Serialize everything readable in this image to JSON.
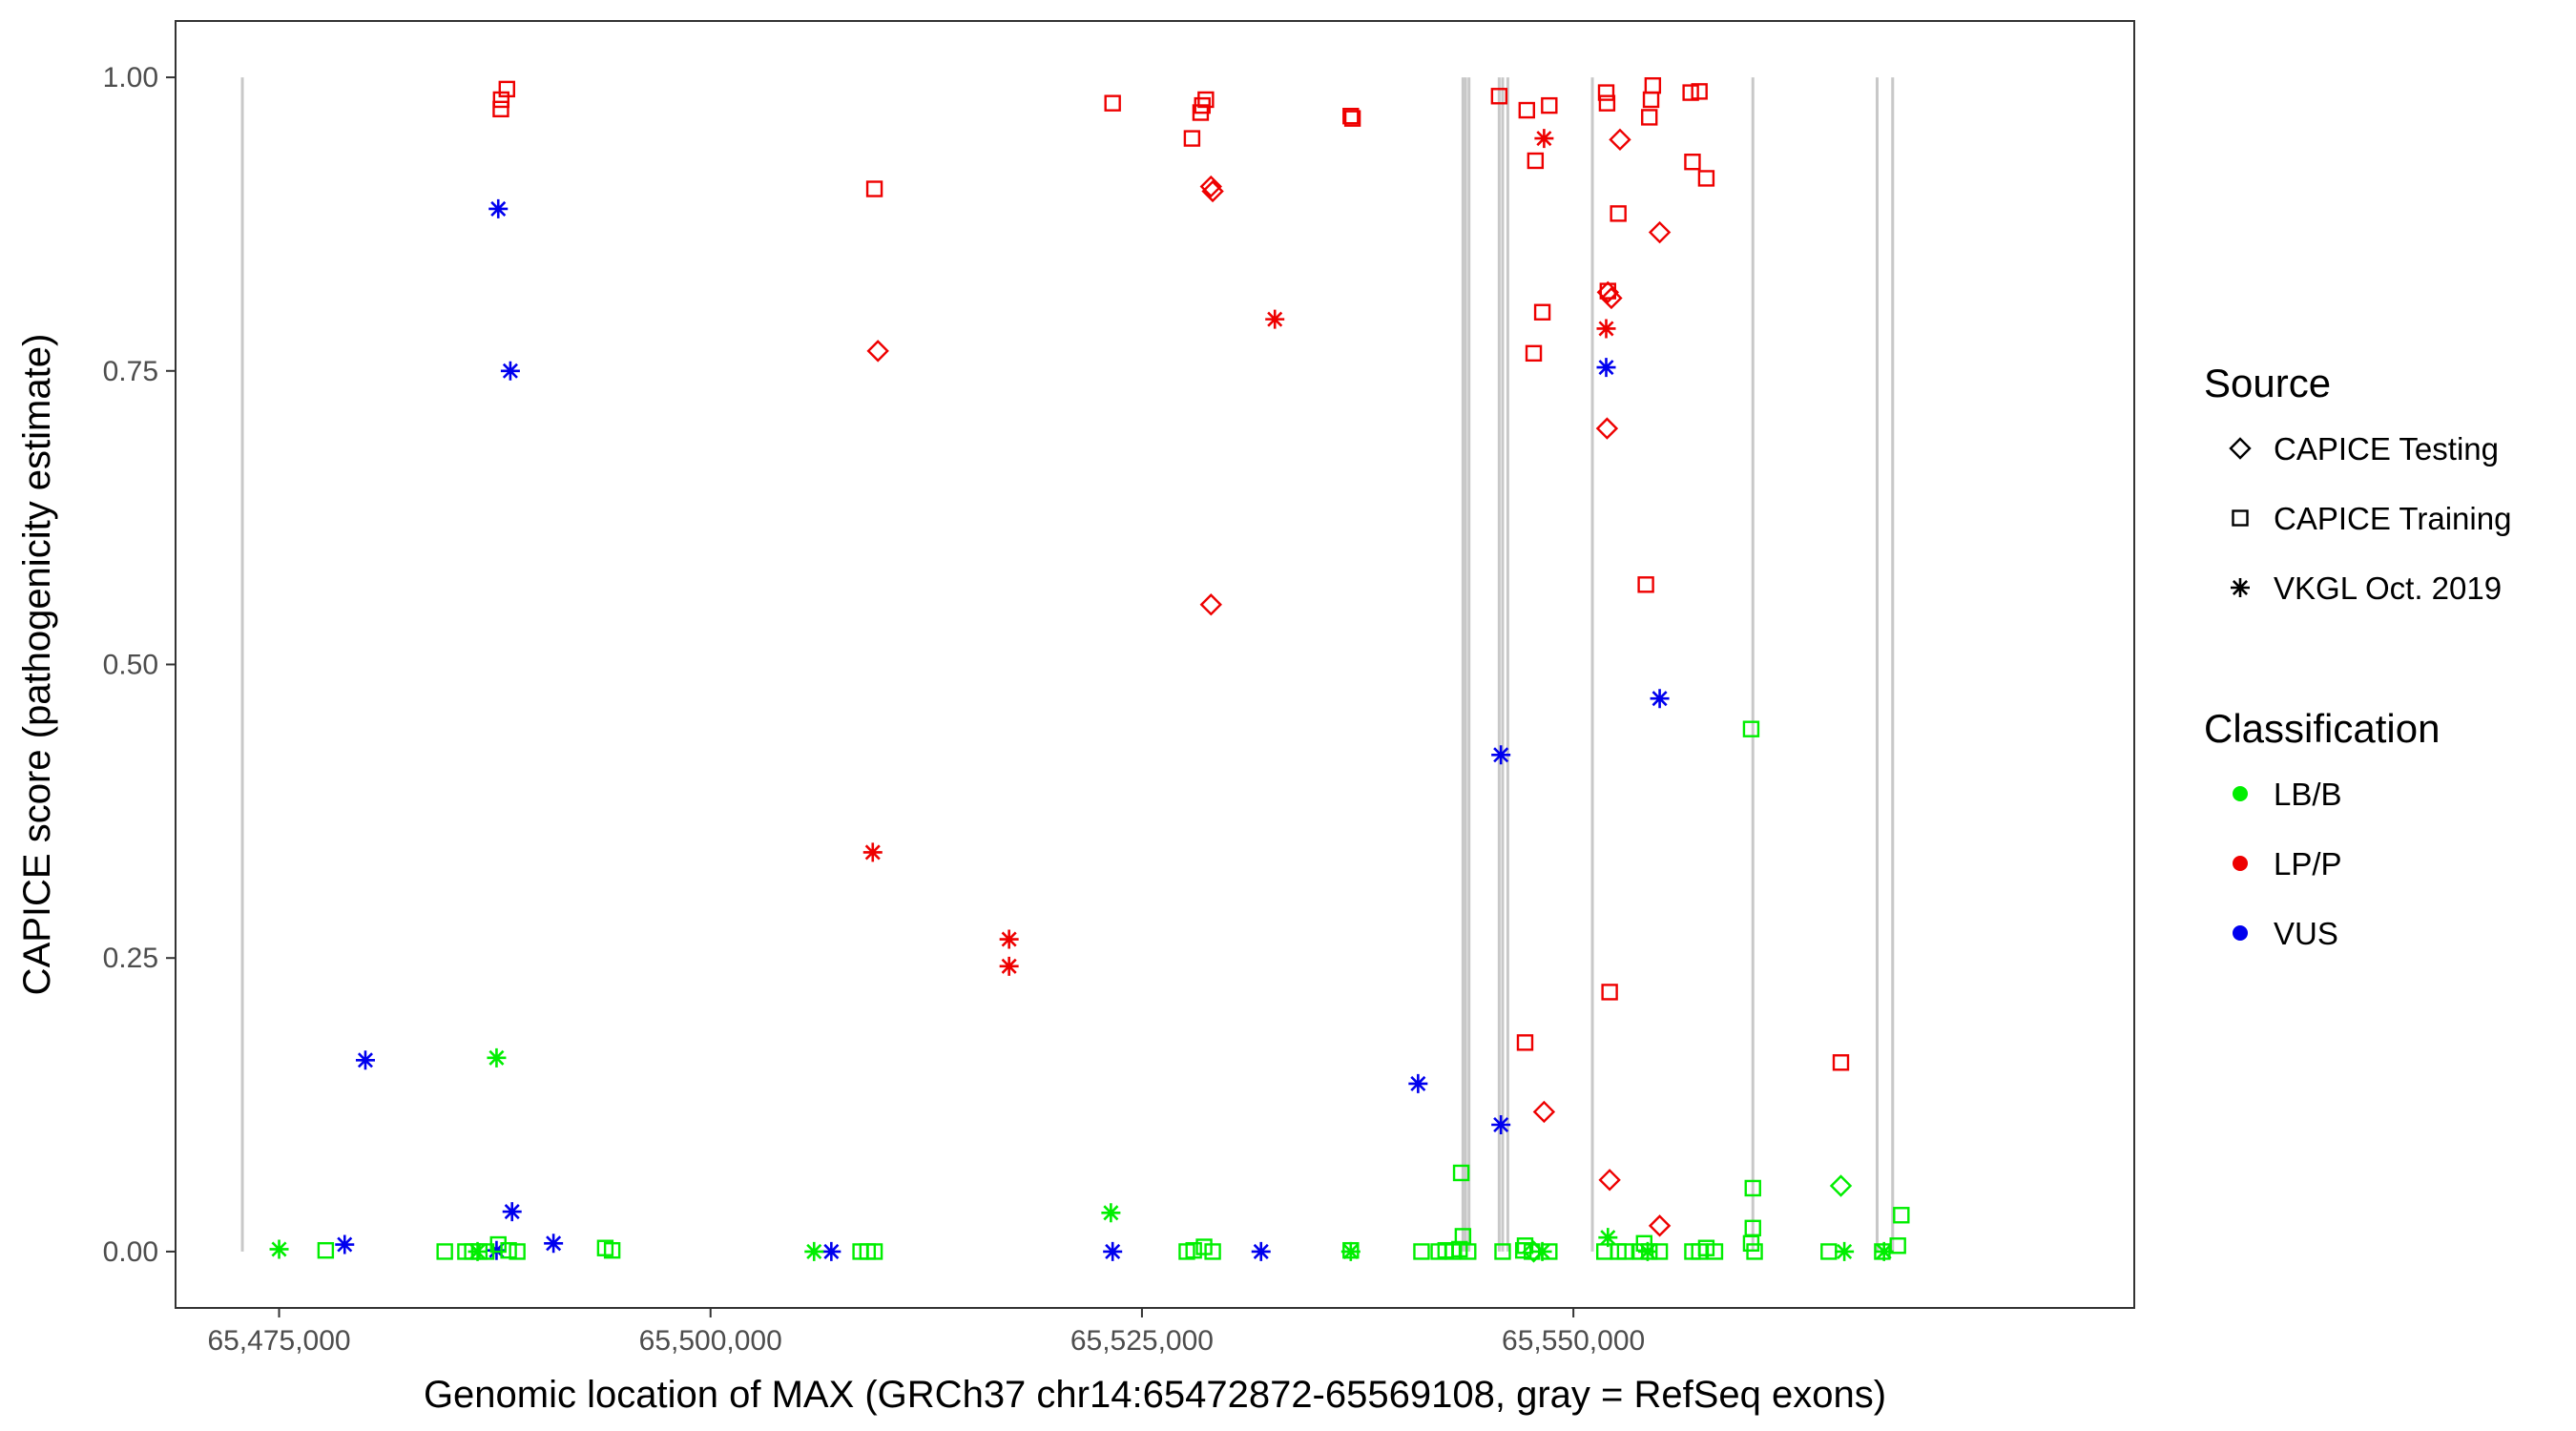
{
  "chart_data": {
    "type": "scatter",
    "xlabel": "Genomic location of MAX (GRCh37 chr14:65472872-65569108, gray = RefSeq exons)",
    "ylabel": "CAPICE score (pathogenicity estimate)",
    "xlim": [
      65469000,
      65582500
    ],
    "ylim": [
      -0.048,
      1.048
    ],
    "x_ticks": [
      65475000,
      65500000,
      65525000,
      65550000
    ],
    "x_tick_labels": [
      "65,475,000",
      "65,500,000",
      "65,525,000",
      "65,550,000"
    ],
    "y_ticks": [
      0,
      0.25,
      0.5,
      0.75,
      1
    ],
    "y_tick_labels": [
      "0.00",
      "0.25",
      "0.50",
      "0.75",
      "1.00"
    ],
    "grid": false,
    "exon_color": "#c8c8c8",
    "exons": [
      65472872,
      65543600,
      65543750,
      65543950,
      65545700,
      65545900,
      65546200,
      65551100,
      65560400,
      65567600,
      65568500
    ],
    "legend": {
      "placement": "right",
      "source_title": "Source",
      "source_items": [
        {
          "shape": "diamond",
          "label": "CAPICE Testing"
        },
        {
          "shape": "square",
          "label": "CAPICE Training"
        },
        {
          "shape": "asterisk",
          "label": "VKGL Oct. 2019"
        }
      ],
      "classification_title": "Classification",
      "classification_items": [
        {
          "key": "LB/B",
          "label": "LB/B",
          "color": "#00ee00"
        },
        {
          "key": "LP/P",
          "label": "LP/P",
          "color": "#ee0000"
        },
        {
          "key": "VUS",
          "label": "VUS",
          "color": "#0000ee"
        }
      ]
    },
    "series": [
      {
        "source": "CAPICE Training",
        "class": "LP/P",
        "points": [
          [
            65487870,
            0.981
          ],
          [
            65487850,
            0.973
          ],
          [
            65488200,
            0.99
          ],
          [
            65509500,
            0.905
          ],
          [
            65523300,
            0.978
          ],
          [
            65527900,
            0.948
          ],
          [
            65528400,
            0.97
          ],
          [
            65528500,
            0.976
          ],
          [
            65528700,
            0.981
          ],
          [
            65537100,
            0.967
          ],
          [
            65537200,
            0.965
          ],
          [
            65545700,
            0.984
          ],
          [
            65547300,
            0.972
          ],
          [
            65547800,
            0.929
          ],
          [
            65548600,
            0.976
          ],
          [
            65547700,
            0.765
          ],
          [
            65548200,
            0.8
          ],
          [
            65547200,
            0.178
          ],
          [
            65551900,
            0.987
          ],
          [
            65551950,
            0.978
          ],
          [
            65552000,
            0.818
          ],
          [
            65552100,
            0.221
          ],
          [
            65552600,
            0.884
          ],
          [
            65554200,
            0.568
          ],
          [
            65554400,
            0.966
          ],
          [
            65554500,
            0.981
          ],
          [
            65554600,
            0.993
          ],
          [
            65556800,
            0.987
          ],
          [
            65557300,
            0.988
          ],
          [
            65556900,
            0.928
          ],
          [
            65557700,
            0.914
          ],
          [
            65565500,
            0.161
          ]
        ]
      },
      {
        "source": "CAPICE Testing",
        "class": "LP/P",
        "points": [
          [
            65509700,
            0.767
          ],
          [
            65529000,
            0.907
          ],
          [
            65529100,
            0.903
          ],
          [
            65529000,
            0.551
          ],
          [
            65552000,
            0.817
          ],
          [
            65552200,
            0.812
          ],
          [
            65552700,
            0.947
          ],
          [
            65555000,
            0.868
          ],
          [
            65551950,
            0.701
          ],
          [
            65548300,
            0.119
          ],
          [
            65552100,
            0.061
          ],
          [
            65555000,
            0.022
          ]
        ]
      },
      {
        "source": "VKGL Oct. 2019",
        "class": "LP/P",
        "points": [
          [
            65509400,
            0.34
          ],
          [
            65517300,
            0.266
          ],
          [
            65517300,
            0.243
          ],
          [
            65532700,
            0.794
          ],
          [
            65548300,
            0.948
          ],
          [
            65551900,
            0.786
          ]
        ]
      },
      {
        "source": "VKGL Oct. 2019",
        "class": "VUS",
        "points": [
          [
            65487700,
            0.888
          ],
          [
            65488400,
            0.75
          ],
          [
            65480000,
            0.163
          ],
          [
            65478800,
            0.006
          ],
          [
            65488500,
            0.034
          ],
          [
            65490900,
            0.007
          ],
          [
            65487600,
            0.001
          ],
          [
            65507000,
            0.0
          ],
          [
            65523300,
            0.0
          ],
          [
            65531900,
            0.0
          ],
          [
            65541000,
            0.143
          ],
          [
            65545800,
            0.423
          ],
          [
            65545800,
            0.108
          ],
          [
            65551900,
            0.753
          ],
          [
            65555000,
            0.471
          ]
        ]
      },
      {
        "source": "VKGL Oct. 2019",
        "class": "LB/B",
        "points": [
          [
            65475000,
            0.002
          ],
          [
            65487600,
            0.165
          ],
          [
            65523200,
            0.033
          ],
          [
            65486500,
            0.0
          ],
          [
            65506000,
            0.0
          ],
          [
            65537100,
            0.0
          ],
          [
            65548200,
            0.0
          ],
          [
            65552000,
            0.012
          ],
          [
            65554300,
            0.0
          ],
          [
            65565700,
            0.0
          ],
          [
            65568000,
            0.0
          ]
        ]
      },
      {
        "source": "CAPICE Training",
        "class": "LB/B",
        "points": [
          [
            65477700,
            0.001
          ],
          [
            65484600,
            0.0
          ],
          [
            65485800,
            0.0
          ],
          [
            65486200,
            0.0
          ],
          [
            65486600,
            0.0
          ],
          [
            65487000,
            0.0
          ],
          [
            65487700,
            0.006
          ],
          [
            65488300,
            0.001
          ],
          [
            65488800,
            0.0
          ],
          [
            65493900,
            0.003
          ],
          [
            65494300,
            0.001
          ],
          [
            65508700,
            0.0
          ],
          [
            65509100,
            0.0
          ],
          [
            65509500,
            0.0
          ],
          [
            65527600,
            0.0
          ],
          [
            65528000,
            0.001
          ],
          [
            65528600,
            0.004
          ],
          [
            65529100,
            0.0
          ],
          [
            65537100,
            0.001
          ],
          [
            65541200,
            0.0
          ],
          [
            65542200,
            0.0
          ],
          [
            65542600,
            0.001
          ],
          [
            65543000,
            0.0
          ],
          [
            65543400,
            0.002
          ],
          [
            65543600,
            0.013
          ],
          [
            65543500,
            0.067
          ],
          [
            65543900,
            0.0
          ],
          [
            65545900,
            0.0
          ],
          [
            65547100,
            0.001
          ],
          [
            65547200,
            0.005
          ],
          [
            65547600,
            0.0
          ],
          [
            65548600,
            0.0
          ],
          [
            65551800,
            0.0
          ],
          [
            65552600,
            0.0
          ],
          [
            65553000,
            0.0
          ],
          [
            65553900,
            0.0
          ],
          [
            65554100,
            0.007
          ],
          [
            65554400,
            0.0
          ],
          [
            65555000,
            0.0
          ],
          [
            65556900,
            0.0
          ],
          [
            65557300,
            0.0
          ],
          [
            65557700,
            0.003
          ],
          [
            65558200,
            0.0
          ],
          [
            65560500,
            0.0
          ],
          [
            65560300,
            0.007
          ],
          [
            65560400,
            0.02
          ],
          [
            65560400,
            0.054
          ],
          [
            65560300,
            0.445
          ],
          [
            65564800,
            0.0
          ],
          [
            65567900,
            0.0
          ],
          [
            65568800,
            0.005
          ],
          [
            65569000,
            0.031
          ]
        ]
      },
      {
        "source": "CAPICE Testing",
        "class": "LB/B",
        "points": [
          [
            65565500,
            0.056
          ],
          [
            65547700,
            0.0
          ]
        ]
      }
    ]
  }
}
